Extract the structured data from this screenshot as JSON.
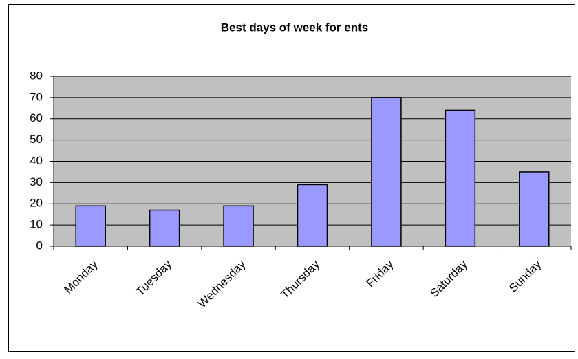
{
  "chart_data": {
    "type": "bar",
    "title": "Best days of week for ents",
    "categories": [
      "Monday",
      "Tuesday",
      "Wednesday",
      "Thursday",
      "Friday",
      "Saturday",
      "Sunday"
    ],
    "values": [
      19,
      17,
      19,
      29,
      70,
      64,
      35
    ],
    "color": "#9999ff",
    "ylim": [
      0,
      80
    ],
    "yticks": [
      0,
      10,
      20,
      30,
      40,
      50,
      60,
      70,
      80
    ],
    "grid": true
  }
}
